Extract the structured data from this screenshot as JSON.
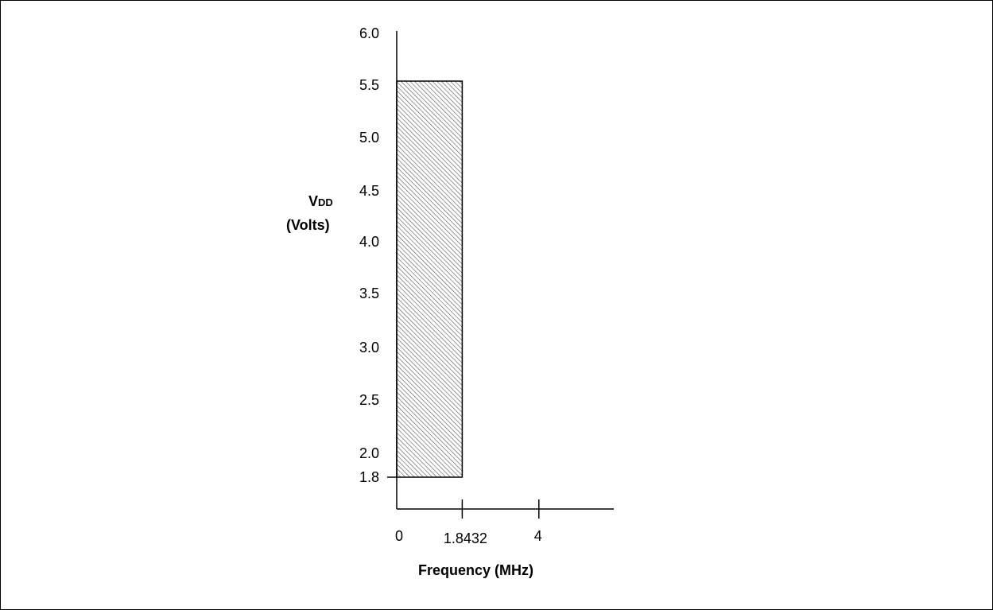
{
  "chart_data": {
    "type": "area",
    "title": "",
    "xlabel": "Frequency (MHz)",
    "ylabel_main": "V",
    "ylabel_sub": "DD",
    "ylabel_units": "(Volts)",
    "y_ticks": [
      "6.0",
      "5.5",
      "5.0",
      "4.5",
      "4.0",
      "3.5",
      "3.0",
      "2.5",
      "2.0",
      "1.8"
    ],
    "y_tick_values": [
      6.0,
      5.5,
      5.0,
      4.5,
      4.0,
      3.5,
      3.0,
      2.5,
      2.0,
      1.8
    ],
    "x_ticks": [
      "0",
      "1.8432",
      "4"
    ],
    "x_tick_values": [
      0,
      1.8432,
      4
    ],
    "xlim": [
      0,
      6.4
    ],
    "ylim": [
      1.5,
      6.0
    ],
    "region": {
      "x_min": 0,
      "x_max": 1.8432,
      "y_min": 1.8,
      "y_max": 5.5,
      "fill": "hatched"
    },
    "grid": false,
    "colors": {
      "axis": "#000000",
      "hatch": "#555555",
      "region_border": "#000000"
    }
  }
}
